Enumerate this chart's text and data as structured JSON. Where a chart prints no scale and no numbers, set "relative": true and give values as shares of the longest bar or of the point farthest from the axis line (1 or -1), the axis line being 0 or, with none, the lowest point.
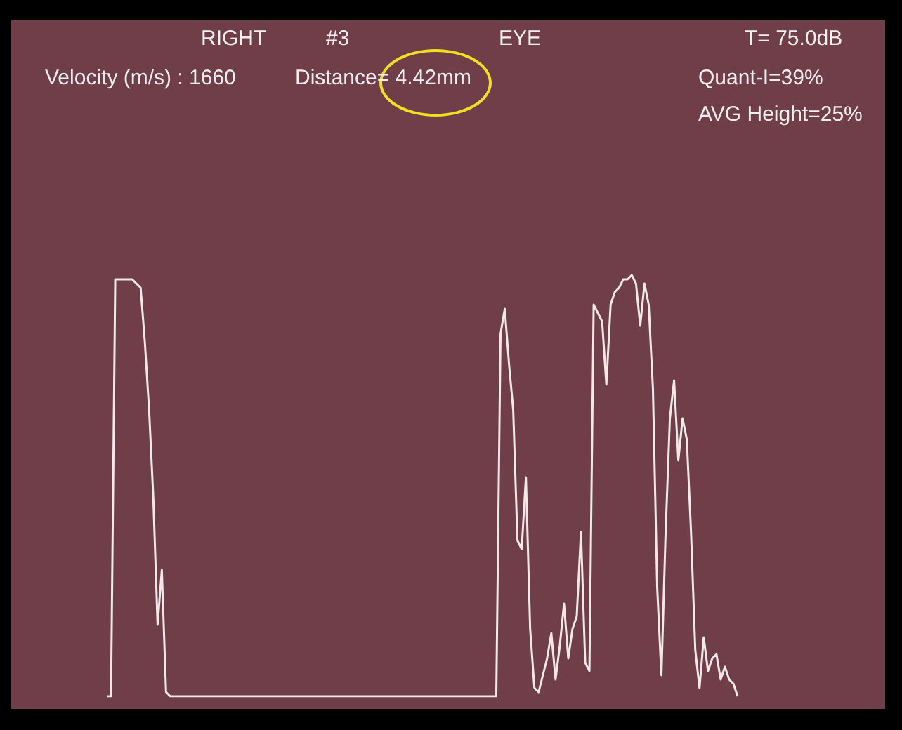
{
  "chart_data": {
    "type": "line",
    "relative": true,
    "annotations": [
      "RIGHT",
      "#3",
      "EYE",
      "T= 75.0dB",
      "Velocity (m/s) : 1660",
      "Distance= 4.42mm",
      "Quant-I=39%",
      "AVG Height=25%"
    ],
    "categories": [
      null,
      null,
      null,
      null,
      null,
      null,
      null,
      null,
      null,
      null,
      null,
      null,
      null,
      null,
      null,
      null,
      null,
      null,
      null,
      null,
      null,
      null,
      null,
      null,
      null,
      null,
      null,
      null,
      null,
      null,
      null,
      null,
      null,
      null,
      null,
      null,
      null,
      null,
      null,
      null,
      null,
      null,
      null,
      null,
      null,
      null,
      null,
      null,
      null,
      null,
      null,
      null,
      null,
      null,
      null,
      null,
      null,
      null,
      null,
      null,
      null,
      null,
      null,
      null,
      null,
      null,
      null,
      null,
      null,
      null,
      null,
      null,
      null,
      null,
      null,
      null,
      null,
      null,
      null,
      null,
      null,
      null,
      null,
      null,
      null,
      null,
      null,
      null,
      null,
      null,
      null,
      null,
      null,
      null,
      null,
      null,
      null,
      null,
      null,
      null,
      null,
      null,
      null,
      null,
      null,
      null,
      null,
      null,
      null,
      null,
      null,
      null,
      null,
      null,
      null,
      null,
      null,
      null,
      null,
      null,
      null,
      null,
      null,
      null,
      null,
      null,
      null,
      null,
      null,
      null,
      null,
      null,
      null,
      null,
      null,
      null,
      null,
      null,
      null,
      null,
      null,
      null,
      null,
      null,
      null,
      null,
      null,
      null,
      null,
      null
    ],
    "series": [
      {
        "color": "#f2e8ea",
        "values": [
          0,
          0,
          0.99,
          0.99,
          0.99,
          0.99,
          0.99,
          0.98,
          0.97,
          0.84,
          0.68,
          0.47,
          0.17,
          0.3,
          0.01,
          0,
          0,
          0,
          0,
          0,
          0,
          0,
          0,
          0,
          0,
          0,
          0,
          0,
          0,
          0,
          0,
          0,
          0,
          0,
          0,
          0,
          0,
          0,
          0,
          0,
          0,
          0,
          0,
          0,
          0,
          0,
          0,
          0,
          0,
          0,
          0,
          0,
          0,
          0,
          0,
          0,
          0,
          0,
          0,
          0,
          0,
          0,
          0,
          0,
          0,
          0,
          0,
          0,
          0,
          0,
          0,
          0,
          0,
          0,
          0,
          0,
          0,
          0,
          0,
          0,
          0,
          0,
          0,
          0,
          0,
          0,
          0,
          0,
          0,
          0,
          0,
          0,
          0,
          0.86,
          0.92,
          0.79,
          0.68,
          0.37,
          0.35,
          0.52,
          0.16,
          0.02,
          0.01,
          0.05,
          0.09,
          0.15,
          0.04,
          0.12,
          0.22,
          0.09,
          0.16,
          0.19,
          0.39,
          0.08,
          0.06,
          0.93,
          0.91,
          0.89,
          0.74,
          0.93,
          0.96,
          0.97,
          0.99,
          0.99,
          1,
          0.98,
          0.88,
          0.98,
          0.93,
          0.73,
          0.26,
          0.05,
          0.39,
          0.66,
          0.75,
          0.56,
          0.66,
          0.61,
          0.39,
          0.11,
          0.02,
          0.14,
          0.06,
          0.09,
          0.1,
          0.04,
          0.07,
          0.04,
          0.03,
          0
        ]
      }
    ]
  }
}
